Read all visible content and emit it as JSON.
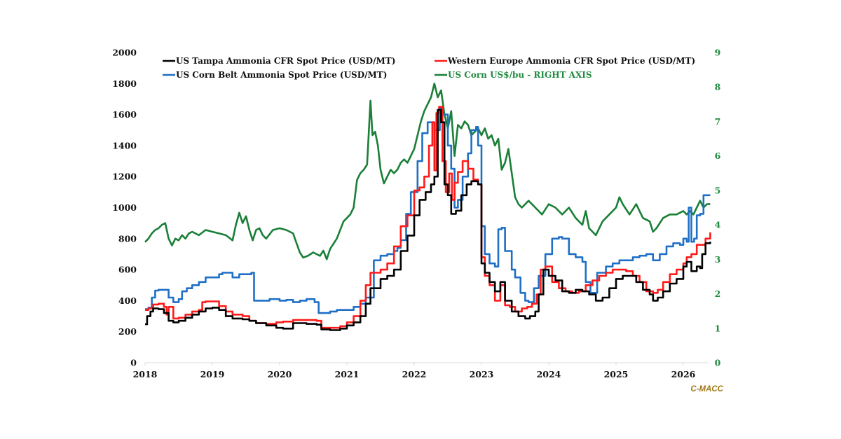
{
  "chart_data": {
    "type": "line",
    "title": "",
    "xlabel": "",
    "ylabel": "",
    "y2label": "",
    "xlim": [
      2018,
      2026.4
    ],
    "ylim": [
      0,
      2000
    ],
    "y2lim": [
      0,
      9
    ],
    "x_ticks": [
      "2018",
      "2019",
      "2020",
      "2021",
      "2022",
      "2023",
      "2024",
      "2025",
      "2026"
    ],
    "y_ticks": [
      "0",
      "200",
      "400",
      "600",
      "800",
      "1000",
      "1200",
      "1400",
      "1600",
      "1800",
      "2000"
    ],
    "y2_ticks": [
      "0",
      "1",
      "2",
      "3",
      "4",
      "5",
      "6",
      "7",
      "8",
      "9"
    ],
    "grid": false,
    "legend_position": "top",
    "source_label": "C-MACC",
    "series": [
      {
        "name": "US Tampa Ammonia CFR Spot Price (USD/MT)",
        "color": "#000000",
        "axis": "left",
        "x": [
          2018.0,
          2018.03,
          2018.08,
          2018.12,
          2018.2,
          2018.28,
          2018.35,
          2018.42,
          2018.5,
          2018.6,
          2018.7,
          2018.8,
          2018.9,
          2019.0,
          2019.1,
          2019.2,
          2019.3,
          2019.45,
          2019.55,
          2019.65,
          2019.8,
          2019.95,
          2020.05,
          2020.2,
          2020.4,
          2020.55,
          2020.62,
          2020.75,
          2020.9,
          2021.0,
          2021.1,
          2021.2,
          2021.28,
          2021.35,
          2021.5,
          2021.6,
          2021.7,
          2021.8,
          2021.9,
          2022.0,
          2022.08,
          2022.17,
          2022.25,
          2022.3,
          2022.35,
          2022.4,
          2022.45,
          2022.5,
          2022.55,
          2022.62,
          2022.7,
          2022.78,
          2022.85,
          2022.95,
          2023.0,
          2023.05,
          2023.12,
          2023.2,
          2023.28,
          2023.35,
          2023.45,
          2023.55,
          2023.65,
          2023.72,
          2023.8,
          2023.85,
          2023.92,
          2024.0,
          2024.1,
          2024.2,
          2024.3,
          2024.4,
          2024.5,
          2024.6,
          2024.7,
          2024.8,
          2024.9,
          2025.0,
          2025.1,
          2025.2,
          2025.3,
          2025.4,
          2025.5,
          2025.55,
          2025.62,
          2025.7,
          2025.8,
          2025.9,
          2026.0,
          2026.05,
          2026.12,
          2026.2,
          2026.25,
          2026.28,
          2026.33,
          2026.4
        ],
        "values": [
          248,
          300,
          330,
          350,
          345,
          320,
          270,
          260,
          270,
          290,
          310,
          330,
          350,
          355,
          340,
          300,
          285,
          280,
          270,
          255,
          240,
          225,
          220,
          255,
          250,
          245,
          215,
          210,
          220,
          240,
          260,
          300,
          380,
          480,
          540,
          560,
          600,
          720,
          820,
          950,
          1050,
          1100,
          1150,
          1200,
          1630,
          1550,
          1150,
          1080,
          960,
          980,
          1080,
          1150,
          1170,
          1150,
          640,
          580,
          520,
          460,
          520,
          400,
          330,
          300,
          285,
          300,
          330,
          440,
          600,
          560,
          530,
          460,
          450,
          470,
          460,
          440,
          400,
          420,
          480,
          540,
          560,
          560,
          520,
          470,
          440,
          400,
          420,
          460,
          510,
          540,
          620,
          650,
          590,
          620,
          610,
          700,
          770,
          780
        ]
      },
      {
        "name": "Western Europe Ammonia CFR Spot Price (USD/MT)",
        "color": "#ff1a1a",
        "axis": "left",
        "x": [
          2018.0,
          2018.05,
          2018.12,
          2018.2,
          2018.28,
          2018.32,
          2018.35,
          2018.42,
          2018.5,
          2018.6,
          2018.7,
          2018.8,
          2018.85,
          2018.9,
          2019.0,
          2019.1,
          2019.2,
          2019.3,
          2019.45,
          2019.55,
          2019.65,
          2019.8,
          2019.95,
          2020.05,
          2020.2,
          2020.4,
          2020.55,
          2020.62,
          2020.75,
          2020.9,
          2021.0,
          2021.1,
          2021.2,
          2021.28,
          2021.35,
          2021.5,
          2021.6,
          2021.7,
          2021.8,
          2021.9,
          2022.0,
          2022.08,
          2022.15,
          2022.22,
          2022.27,
          2022.3,
          2022.33,
          2022.37,
          2022.42,
          2022.47,
          2022.52,
          2022.56,
          2022.6,
          2022.65,
          2022.72,
          2022.8,
          2022.88,
          2022.95,
          2023.0,
          2023.05,
          2023.12,
          2023.2,
          2023.28,
          2023.35,
          2023.42,
          2023.5,
          2023.6,
          2023.68,
          2023.75,
          2023.82,
          2023.88,
          2023.95,
          2024.05,
          2024.15,
          2024.25,
          2024.35,
          2024.45,
          2024.55,
          2024.65,
          2024.75,
          2024.85,
          2024.95,
          2025.05,
          2025.15,
          2025.25,
          2025.35,
          2025.45,
          2025.55,
          2025.62,
          2025.7,
          2025.8,
          2025.9,
          2026.0,
          2026.05,
          2026.12,
          2026.2,
          2026.28,
          2026.33,
          2026.4
        ],
        "values": [
          340,
          350,
          375,
          380,
          360,
          310,
          360,
          285,
          290,
          310,
          330,
          340,
          390,
          395,
          395,
          365,
          330,
          310,
          300,
          270,
          255,
          250,
          260,
          265,
          275,
          275,
          270,
          225,
          225,
          235,
          260,
          300,
          400,
          500,
          580,
          600,
          640,
          750,
          880,
          950,
          1110,
          1130,
          1200,
          1400,
          1550,
          1240,
          1610,
          1650,
          1300,
          1100,
          1220,
          1050,
          1160,
          1230,
          1300,
          1250,
          1180,
          1150,
          680,
          560,
          500,
          400,
          500,
          370,
          360,
          330,
          350,
          360,
          380,
          440,
          600,
          620,
          520,
          480,
          460,
          450,
          460,
          500,
          530,
          560,
          580,
          600,
          600,
          590,
          560,
          520,
          460,
          450,
          470,
          520,
          570,
          600,
          640,
          680,
          700,
          760,
          760,
          800,
          840
        ]
      },
      {
        "name": "US Corn Belt Ammonia Spot Price (USD/MT)",
        "color": "#1f6fc5",
        "axis": "left",
        "x": [
          2018.0,
          2018.05,
          2018.1,
          2018.15,
          2018.2,
          2018.28,
          2018.35,
          2018.42,
          2018.5,
          2018.55,
          2018.62,
          2018.7,
          2018.8,
          2018.9,
          2019.0,
          2019.1,
          2019.15,
          2019.3,
          2019.4,
          2019.5,
          2019.58,
          2019.62,
          2019.7,
          2019.85,
          2020.0,
          2020.1,
          2020.2,
          2020.3,
          2020.4,
          2020.52,
          2020.58,
          2020.65,
          2020.75,
          2020.85,
          2021.0,
          2021.1,
          2021.2,
          2021.28,
          2021.4,
          2021.5,
          2021.6,
          2021.7,
          2021.75,
          2021.8,
          2021.88,
          2021.95,
          2022.05,
          2022.12,
          2022.2,
          2022.3,
          2022.38,
          2022.42,
          2022.5,
          2022.55,
          2022.6,
          2022.65,
          2022.72,
          2022.8,
          2022.85,
          2022.92,
          2022.95,
          2023.0,
          2023.05,
          2023.12,
          2023.2,
          2023.25,
          2023.3,
          2023.35,
          2023.45,
          2023.5,
          2023.58,
          2023.65,
          2023.7,
          2023.78,
          2023.85,
          2023.95,
          2024.05,
          2024.15,
          2024.2,
          2024.3,
          2024.4,
          2024.5,
          2024.55,
          2024.62,
          2024.72,
          2024.85,
          2024.95,
          2025.05,
          2025.15,
          2025.25,
          2025.35,
          2025.45,
          2025.55,
          2025.65,
          2025.75,
          2025.85,
          2025.95,
          2026.0,
          2026.05,
          2026.08,
          2026.12,
          2026.16,
          2026.2,
          2026.25,
          2026.3,
          2026.35,
          2026.4
        ],
        "values": [
          345,
          355,
          420,
          465,
          470,
          470,
          420,
          390,
          410,
          460,
          480,
          500,
          520,
          550,
          550,
          570,
          580,
          550,
          570,
          570,
          580,
          400,
          400,
          410,
          400,
          405,
          390,
          400,
          410,
          390,
          320,
          320,
          330,
          340,
          340,
          360,
          380,
          420,
          660,
          690,
          700,
          720,
          740,
          790,
          960,
          1100,
          1300,
          1480,
          1550,
          1500,
          1640,
          1600,
          1400,
          1250,
          1000,
          1050,
          1200,
          1350,
          1500,
          1520,
          1400,
          880,
          700,
          640,
          620,
          860,
          870,
          720,
          600,
          550,
          450,
          400,
          390,
          480,
          560,
          700,
          800,
          810,
          800,
          700,
          680,
          650,
          520,
          450,
          580,
          620,
          640,
          660,
          660,
          680,
          690,
          700,
          660,
          700,
          750,
          770,
          760,
          800,
          780,
          1000,
          780,
          800,
          950,
          960,
          1080,
          1080,
          1080
        ]
      },
      {
        "name": "US Corn US$/bu - RIGHT AXIS",
        "color": "#1a7f37",
        "axis": "right",
        "x": [
          2018.0,
          2018.05,
          2018.1,
          2018.15,
          2018.2,
          2018.25,
          2018.3,
          2018.35,
          2018.4,
          2018.45,
          2018.5,
          2018.55,
          2018.6,
          2018.65,
          2018.7,
          2018.8,
          2018.9,
          2019.0,
          2019.1,
          2019.2,
          2019.3,
          2019.35,
          2019.4,
          2019.45,
          2019.5,
          2019.55,
          2019.6,
          2019.65,
          2019.7,
          2019.75,
          2019.8,
          2019.9,
          2020.0,
          2020.1,
          2020.2,
          2020.3,
          2020.35,
          2020.42,
          2020.5,
          2020.55,
          2020.6,
          2020.65,
          2020.7,
          2020.75,
          2020.85,
          2020.95,
          2021.0,
          2021.05,
          2021.1,
          2021.15,
          2021.2,
          2021.25,
          2021.3,
          2021.35,
          2021.38,
          2021.42,
          2021.46,
          2021.5,
          2021.55,
          2021.6,
          2021.65,
          2021.7,
          2021.75,
          2021.8,
          2021.85,
          2021.9,
          2021.95,
          2022.0,
          2022.05,
          2022.1,
          2022.15,
          2022.2,
          2022.25,
          2022.3,
          2022.35,
          2022.4,
          2022.45,
          2022.5,
          2022.55,
          2022.6,
          2022.65,
          2022.7,
          2022.75,
          2022.8,
          2022.85,
          2022.9,
          2022.95,
          2023.0,
          2023.05,
          2023.1,
          2023.15,
          2023.2,
          2023.25,
          2023.3,
          2023.35,
          2023.4,
          2023.45,
          2023.5,
          2023.55,
          2023.6,
          2023.7,
          2023.8,
          2023.9,
          2024.0,
          2024.1,
          2024.2,
          2024.3,
          2024.4,
          2024.5,
          2024.55,
          2024.6,
          2024.7,
          2024.8,
          2024.9,
          2025.0,
          2025.05,
          2025.1,
          2025.2,
          2025.3,
          2025.4,
          2025.5,
          2025.55,
          2025.6,
          2025.7,
          2025.8,
          2025.9,
          2026.0,
          2026.05,
          2026.1,
          2026.15,
          2026.2,
          2026.25,
          2026.3,
          2026.35,
          2026.4
        ],
        "values": [
          3.5,
          3.6,
          3.75,
          3.85,
          3.9,
          4.0,
          4.05,
          3.6,
          3.4,
          3.6,
          3.55,
          3.7,
          3.6,
          3.75,
          3.8,
          3.7,
          3.85,
          3.8,
          3.75,
          3.7,
          3.55,
          4.0,
          4.35,
          4.05,
          4.25,
          3.85,
          3.55,
          3.85,
          3.9,
          3.7,
          3.6,
          3.85,
          3.9,
          3.85,
          3.75,
          3.2,
          3.05,
          3.1,
          3.2,
          3.15,
          3.1,
          3.25,
          3.0,
          3.3,
          3.6,
          4.1,
          4.2,
          4.3,
          4.5,
          5.3,
          5.5,
          5.6,
          5.75,
          7.6,
          6.6,
          6.7,
          6.3,
          5.6,
          5.2,
          5.4,
          5.6,
          5.5,
          5.6,
          5.8,
          5.9,
          5.8,
          6.0,
          6.2,
          6.6,
          7.0,
          7.3,
          7.5,
          7.7,
          8.1,
          7.7,
          7.9,
          7.2,
          6.8,
          7.3,
          6.0,
          6.9,
          6.8,
          7.0,
          6.9,
          6.6,
          6.7,
          6.8,
          6.6,
          6.8,
          6.5,
          6.6,
          6.3,
          6.5,
          5.6,
          5.8,
          6.2,
          5.5,
          4.8,
          4.6,
          4.5,
          4.7,
          4.5,
          4.3,
          4.6,
          4.5,
          4.3,
          4.5,
          4.2,
          4.0,
          4.4,
          3.9,
          3.7,
          4.1,
          4.3,
          4.5,
          4.8,
          4.6,
          4.3,
          4.6,
          4.2,
          4.1,
          3.8,
          3.9,
          4.2,
          4.3,
          4.3,
          4.4,
          4.3,
          4.4,
          4.3,
          4.5,
          4.7,
          4.5,
          4.6,
          4.6
        ]
      }
    ]
  }
}
